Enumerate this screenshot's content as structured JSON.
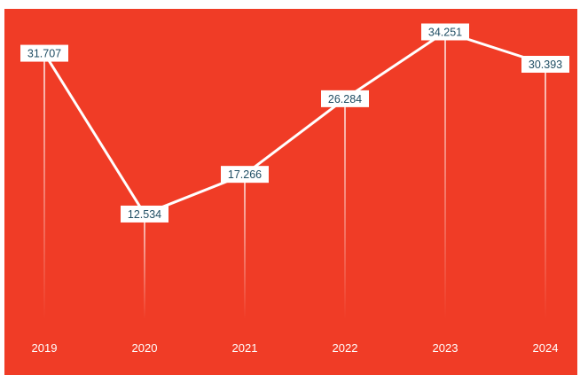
{
  "chart_data": {
    "type": "line",
    "categories": [
      "2019",
      "2020",
      "2021",
      "2022",
      "2023",
      "2024"
    ],
    "values": [
      31.707,
      12.534,
      17.266,
      26.284,
      34.251,
      30.393
    ],
    "labels": [
      "31.707",
      "12.534",
      "17.266",
      "26.284",
      "34.251",
      "30.393"
    ],
    "title": "",
    "xlabel": "",
    "ylabel": "",
    "ylim": [
      0,
      37
    ],
    "grid": false,
    "colors": {
      "background": "#f03c26",
      "line": "#ffffff",
      "label_text": "#1f4d63",
      "label_box": "#ffffff"
    }
  }
}
